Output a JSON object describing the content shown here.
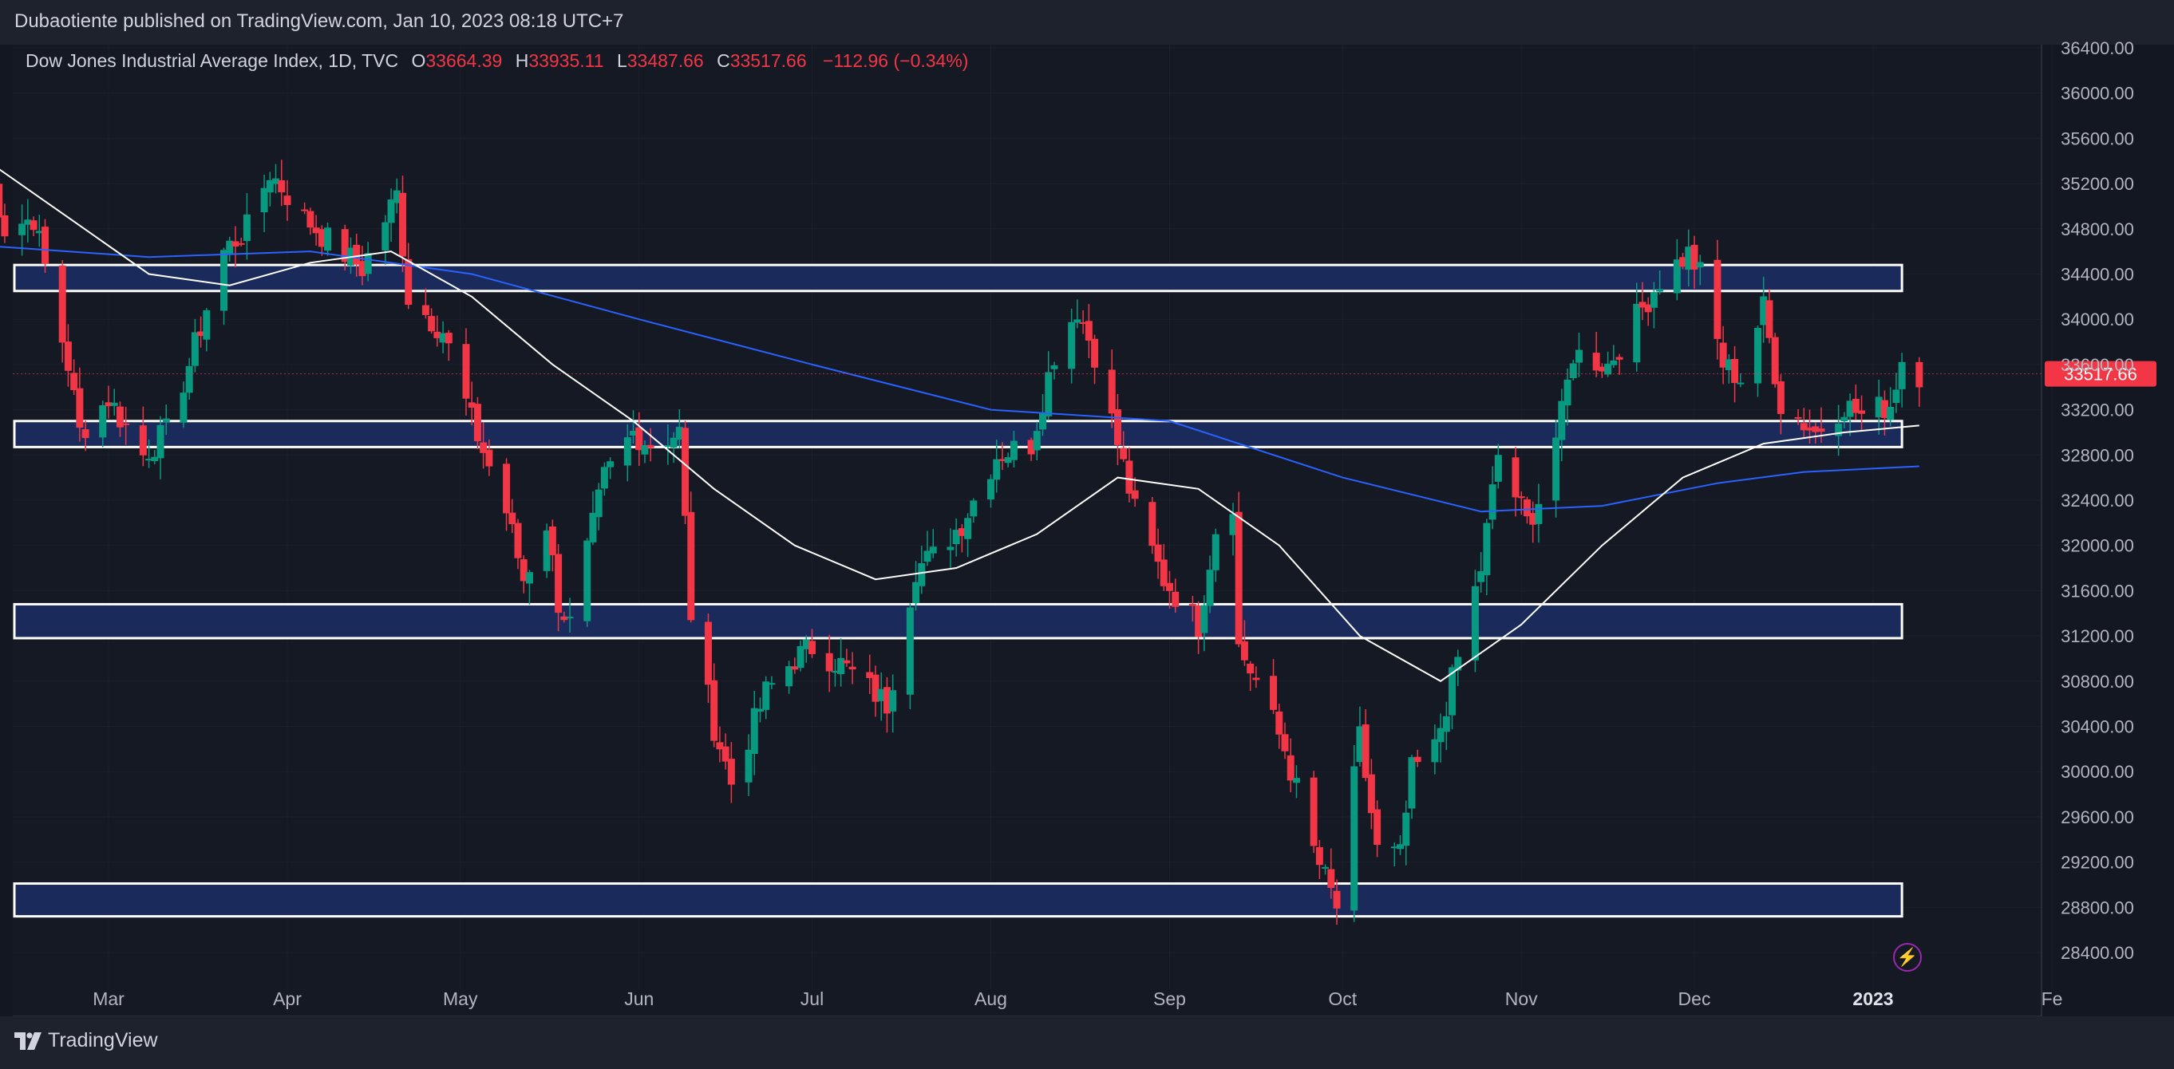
{
  "header": {
    "published_by": "Dubaotiente published on TradingView.com, Jan 10, 2023 08:18 UTC+7"
  },
  "legend": {
    "symbol": "Dow Jones Industrial Average Index, 1D, TVC",
    "open_label": "O",
    "open": "33664.39",
    "high_label": "H",
    "high": "33935.11",
    "low_label": "L",
    "low": "33487.66",
    "close_label": "C",
    "close": "33517.66",
    "change": "−112.96 (−0.34%)"
  },
  "last_price_label": "33517.66",
  "footer": {
    "brand": "TradingView"
  },
  "colors": {
    "background": "#131722",
    "up": "#089981",
    "down": "#f23645",
    "ma_fast": "#ffffff",
    "ma_slow": "#2962ff",
    "zone_fill": "#1a2a5a",
    "zone_stroke": "#ffffff"
  },
  "icons": {
    "brand": "tradingview-logo-icon",
    "alert": "lightning-icon"
  },
  "chart_data": {
    "type": "candlestick",
    "symbol": "Dow Jones Industrial Average Index",
    "interval": "1D",
    "y_ticks": [
      36400,
      36000,
      35600,
      35200,
      34800,
      34400,
      34000,
      33600,
      33200,
      32800,
      32400,
      32000,
      31600,
      31200,
      30800,
      30400,
      30000,
      29600,
      29200,
      28800,
      28400
    ],
    "y_tick_labels": [
      "36400.00",
      "36000.00",
      "35600.00",
      "35200.00",
      "34800.00",
      "34400.00",
      "34000.00",
      "33600.00",
      "33200.00",
      "32800.00",
      "32400.00",
      "32000.00",
      "31600.00",
      "31200.00",
      "30800.00",
      "30400.00",
      "30000.00",
      "29600.00",
      "29200.00",
      "28800.00",
      "28400.00"
    ],
    "ylim": [
      28100,
      36600
    ],
    "x_ticks": [
      {
        "label": "Mar",
        "date": "2022-03-01"
      },
      {
        "label": "Apr",
        "date": "2022-04-01"
      },
      {
        "label": "May",
        "date": "2022-05-01"
      },
      {
        "label": "Jun",
        "date": "2022-06-01"
      },
      {
        "label": "Jul",
        "date": "2022-07-01"
      },
      {
        "label": "Aug",
        "date": "2022-08-01"
      },
      {
        "label": "Sep",
        "date": "2022-09-01"
      },
      {
        "label": "Oct",
        "date": "2022-10-01"
      },
      {
        "label": "Nov",
        "date": "2022-11-01"
      },
      {
        "label": "Dec",
        "date": "2022-12-01"
      },
      {
        "label": "2023",
        "date": "2023-01-01"
      },
      {
        "label": "Fe",
        "date": "2023-02-01"
      }
    ],
    "xlim": [
      "2022-02-08",
      "2023-02-02"
    ],
    "last_price": 33517.66,
    "zones": [
      {
        "low": 34250,
        "high": 34480,
        "start": "2022-02-08",
        "end": "2023-01-06"
      },
      {
        "low": 32870,
        "high": 33100,
        "start": "2022-02-08",
        "end": "2023-01-06"
      },
      {
        "low": 31180,
        "high": 31480,
        "start": "2022-02-08",
        "end": "2023-01-06"
      },
      {
        "low": 28720,
        "high": 29010,
        "start": "2022-02-08",
        "end": "2023-01-06"
      }
    ],
    "keypoints": [
      [
        "2022-02-08",
        35400
      ],
      [
        "2022-02-11",
        34800
      ],
      [
        "2022-02-16",
        34900
      ],
      [
        "2022-02-22",
        33600
      ],
      [
        "2022-02-24",
        33000
      ],
      [
        "2022-03-01",
        33300
      ],
      [
        "2022-03-07",
        32800
      ],
      [
        "2022-03-11",
        33000
      ],
      [
        "2022-03-15",
        33600
      ],
      [
        "2022-03-21",
        34600
      ],
      [
        "2022-03-25",
        34800
      ],
      [
        "2022-03-29",
        35300
      ],
      [
        "2022-04-04",
        34900
      ],
      [
        "2022-04-08",
        34700
      ],
      [
        "2022-04-14",
        34450
      ],
      [
        "2022-04-20",
        35100
      ],
      [
        "2022-04-22",
        34200
      ],
      [
        "2022-04-28",
        33900
      ],
      [
        "2022-05-03",
        33100
      ],
      [
        "2022-05-09",
        32300
      ],
      [
        "2022-05-12",
        31700
      ],
      [
        "2022-05-16",
        32200
      ],
      [
        "2022-05-18",
        31500
      ],
      [
        "2022-05-20",
        31300
      ],
      [
        "2022-05-26",
        32600
      ],
      [
        "2022-05-31",
        33000
      ],
      [
        "2022-06-03",
        32900
      ],
      [
        "2022-06-08",
        33000
      ],
      [
        "2022-06-10",
        31400
      ],
      [
        "2022-06-14",
        30400
      ],
      [
        "2022-06-17",
        29900
      ],
      [
        "2022-06-23",
        30700
      ],
      [
        "2022-06-28",
        31000
      ],
      [
        "2022-07-01",
        31100
      ],
      [
        "2022-07-06",
        30950
      ],
      [
        "2022-07-14",
        30600
      ],
      [
        "2022-07-19",
        31800
      ],
      [
        "2022-07-22",
        31900
      ],
      [
        "2022-07-27",
        32200
      ],
      [
        "2022-08-02",
        32800
      ],
      [
        "2022-08-08",
        32900
      ],
      [
        "2022-08-12",
        33700
      ],
      [
        "2022-08-16",
        34100
      ],
      [
        "2022-08-19",
        33700
      ],
      [
        "2022-08-23",
        32900
      ],
      [
        "2022-08-26",
        32300
      ],
      [
        "2022-08-31",
        31700
      ],
      [
        "2022-09-06",
        31300
      ],
      [
        "2022-09-09",
        32150
      ],
      [
        "2022-09-12",
        32400
      ],
      [
        "2022-09-13",
        31100
      ],
      [
        "2022-09-16",
        30800
      ],
      [
        "2022-09-21",
        30200
      ],
      [
        "2022-09-26",
        29300
      ],
      [
        "2022-09-30",
        28800
      ],
      [
        "2022-10-04",
        30300
      ],
      [
        "2022-10-07",
        29300
      ],
      [
        "2022-10-11",
        29250
      ],
      [
        "2022-10-13",
        30000
      ],
      [
        "2022-10-17",
        30200
      ],
      [
        "2022-10-21",
        31000
      ],
      [
        "2022-10-25",
        31800
      ],
      [
        "2022-10-28",
        32800
      ],
      [
        "2022-11-02",
        32200
      ],
      [
        "2022-11-04",
        32400
      ],
      [
        "2022-11-08",
        33150
      ],
      [
        "2022-11-10",
        33700
      ],
      [
        "2022-11-16",
        33600
      ],
      [
        "2022-11-22",
        34100
      ],
      [
        "2022-11-25",
        34350
      ],
      [
        "2022-11-30",
        34580
      ],
      [
        "2022-12-02",
        34400
      ],
      [
        "2022-12-06",
        33600
      ],
      [
        "2022-12-09",
        33480
      ],
      [
        "2022-12-13",
        34100
      ],
      [
        "2022-12-16",
        33250
      ],
      [
        "2022-12-22",
        33000
      ],
      [
        "2022-12-27",
        33250
      ],
      [
        "2022-12-30",
        33150
      ],
      [
        "2023-01-04",
        33250
      ],
      [
        "2023-01-06",
        33650
      ],
      [
        "2023-01-09",
        33520
      ]
    ],
    "sma_fast": [
      [
        "2022-02-08",
        35400
      ],
      [
        "2022-02-22",
        34900
      ],
      [
        "2022-03-08",
        34400
      ],
      [
        "2022-03-22",
        34300
      ],
      [
        "2022-04-05",
        34500
      ],
      [
        "2022-04-19",
        34600
      ],
      [
        "2022-05-03",
        34200
      ],
      [
        "2022-05-17",
        33600
      ],
      [
        "2022-05-31",
        33100
      ],
      [
        "2022-06-14",
        32500
      ],
      [
        "2022-06-28",
        32000
      ],
      [
        "2022-07-12",
        31700
      ],
      [
        "2022-07-26",
        31800
      ],
      [
        "2022-08-09",
        32100
      ],
      [
        "2022-08-23",
        32600
      ],
      [
        "2022-09-06",
        32500
      ],
      [
        "2022-09-20",
        32000
      ],
      [
        "2022-10-04",
        31200
      ],
      [
        "2022-10-18",
        30800
      ],
      [
        "2022-11-01",
        31300
      ],
      [
        "2022-11-15",
        32000
      ],
      [
        "2022-11-29",
        32600
      ],
      [
        "2022-12-13",
        32900
      ],
      [
        "2022-12-27",
        33000
      ],
      [
        "2023-01-09",
        33060
      ]
    ],
    "sma_slow": [
      [
        "2022-02-08",
        34650
      ],
      [
        "2022-03-08",
        34550
      ],
      [
        "2022-04-05",
        34600
      ],
      [
        "2022-05-03",
        34400
      ],
      [
        "2022-06-01",
        34000
      ],
      [
        "2022-07-01",
        33600
      ],
      [
        "2022-08-01",
        33200
      ],
      [
        "2022-09-01",
        33100
      ],
      [
        "2022-10-01",
        32600
      ],
      [
        "2022-10-25",
        32300
      ],
      [
        "2022-11-15",
        32350
      ],
      [
        "2022-12-05",
        32550
      ],
      [
        "2022-12-20",
        32650
      ],
      [
        "2023-01-09",
        32700
      ]
    ]
  }
}
